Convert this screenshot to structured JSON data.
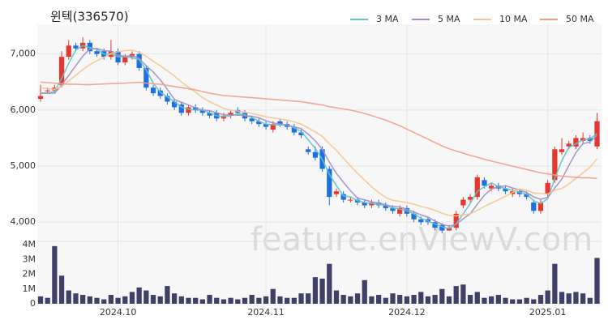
{
  "chart_data": {
    "type": "candlestick",
    "title": "윈텍(336570)",
    "watermark": "feature.enViewV.com",
    "up_color": "#e8352e",
    "down_color": "#1f6fde",
    "grid": true,
    "ylim": [
      3700,
      7530
    ],
    "yticks": [
      {
        "value": 4000,
        "label": "4,000"
      },
      {
        "value": 5000,
        "label": "5,000"
      },
      {
        "value": 6000,
        "label": "6,000"
      },
      {
        "value": 7000,
        "label": "7,000"
      }
    ],
    "categories": [
      null,
      null,
      null,
      null,
      null,
      null,
      null,
      null,
      null,
      null,
      null,
      "2024.10",
      null,
      null,
      null,
      null,
      null,
      null,
      null,
      null,
      null,
      null,
      null,
      null,
      null,
      null,
      null,
      null,
      null,
      null,
      null,
      null,
      "2024.11",
      null,
      null,
      null,
      null,
      null,
      null,
      null,
      null,
      null,
      null,
      null,
      null,
      null,
      null,
      null,
      null,
      null,
      null,
      null,
      "2024.12",
      null,
      null,
      null,
      null,
      null,
      null,
      null,
      null,
      null,
      null,
      null,
      null,
      null,
      null,
      null,
      null,
      null,
      null,
      null,
      "2025.01",
      null,
      null,
      null,
      null,
      null,
      null,
      null
    ],
    "open": [
      6200,
      6350,
      6350,
      6450,
      6950,
      7150,
      7100,
      7200,
      7050,
      7050,
      6950,
      7050,
      6850,
      6950,
      7000,
      6750,
      6400,
      6350,
      6250,
      6150,
      6100,
      5950,
      6050,
      6000,
      5950,
      5950,
      5850,
      5900,
      6000,
      5950,
      5850,
      5800,
      5750,
      5650,
      5800,
      5750,
      5700,
      5600,
      5300,
      5250,
      5300,
      4950,
      4500,
      4500,
      4400,
      4400,
      4350,
      4300,
      4350,
      4300,
      4250,
      4150,
      4250,
      4150,
      4050,
      4050,
      4000,
      3950,
      3850,
      3900,
      4300,
      4400,
      4450,
      4750,
      4600,
      4650,
      4600,
      4500,
      4550,
      4500,
      4350,
      4200,
      4500,
      4750,
      5250,
      5350,
      5350,
      5450,
      5500,
      5350
    ],
    "high": [
      6450,
      6400,
      6450,
      7050,
      7250,
      7200,
      7300,
      7250,
      7100,
      7100,
      7250,
      7100,
      7000,
      7050,
      7050,
      6800,
      6450,
      6400,
      6300,
      6200,
      6150,
      6100,
      6100,
      6050,
      6000,
      6000,
      5950,
      6000,
      6050,
      6000,
      5900,
      5850,
      5800,
      5800,
      5850,
      5800,
      5750,
      5650,
      5350,
      5350,
      5350,
      5000,
      4600,
      4550,
      4450,
      4450,
      4400,
      4400,
      4400,
      4350,
      4300,
      4300,
      4300,
      4200,
      4100,
      4100,
      4050,
      3980,
      3950,
      4200,
      4450,
      4500,
      4850,
      4800,
      4700,
      4700,
      4650,
      4600,
      4600,
      4550,
      4400,
      4400,
      4750,
      5350,
      5500,
      5450,
      5550,
      5600,
      5550,
      5950
    ],
    "low": [
      6150,
      6300,
      6300,
      6400,
      6900,
      7050,
      7050,
      7000,
      6950,
      6900,
      6900,
      6800,
      6800,
      6900,
      6700,
      6350,
      6250,
      6200,
      6100,
      6000,
      5900,
      5900,
      5950,
      5900,
      5850,
      5800,
      5800,
      5850,
      5900,
      5800,
      5750,
      5700,
      5650,
      5600,
      5700,
      5650,
      5550,
      5500,
      5200,
      5100,
      4900,
      4300,
      4450,
      4350,
      4350,
      4300,
      4250,
      4250,
      4250,
      4200,
      4150,
      4100,
      4100,
      4000,
      3950,
      3950,
      3850,
      3800,
      3850,
      3850,
      4250,
      4350,
      4400,
      4600,
      4550,
      4550,
      4500,
      4450,
      4450,
      4400,
      4150,
      4150,
      4450,
      4700,
      5200,
      5300,
      5300,
      5400,
      5400,
      5300
    ],
    "close": [
      6250,
      6350,
      6400,
      6950,
      7150,
      7100,
      7200,
      7050,
      7000,
      6950,
      7050,
      6850,
      6950,
      7000,
      6750,
      6400,
      6300,
      6250,
      6150,
      6050,
      5950,
      6050,
      6000,
      5950,
      5900,
      5850,
      5900,
      5950,
      5950,
      5850,
      5800,
      5750,
      5700,
      5750,
      5750,
      5700,
      5600,
      5550,
      5250,
      5150,
      4950,
      4450,
      4550,
      4400,
      4400,
      4350,
      4300,
      4350,
      4300,
      4250,
      4200,
      4250,
      4150,
      4050,
      4000,
      4000,
      3900,
      3850,
      3900,
      4150,
      4400,
      4450,
      4800,
      4650,
      4650,
      4600,
      4550,
      4550,
      4500,
      4450,
      4200,
      4350,
      4700,
      5300,
      5300,
      5400,
      5500,
      5500,
      5450,
      5800
    ],
    "ma_series": [
      {
        "name": "3 MA",
        "color": "#5cc6c9",
        "values": [
          6300,
          6300,
          6333,
          6567,
          6833,
          7067,
          7150,
          7117,
          7083,
          7000,
          7000,
          6950,
          6950,
          6933,
          6900,
          6717,
          6483,
          6317,
          6233,
          6150,
          6050,
          6017,
          6000,
          6000,
          5950,
          5900,
          5883,
          5900,
          5933,
          5917,
          5867,
          5800,
          5750,
          5733,
          5733,
          5733,
          5683,
          5617,
          5467,
          5317,
          5117,
          4850,
          4650,
          4467,
          4450,
          4383,
          4350,
          4333,
          4317,
          4300,
          4250,
          4233,
          4200,
          4150,
          4067,
          4017,
          3967,
          3917,
          3883,
          3967,
          4150,
          4333,
          4550,
          4633,
          4700,
          4633,
          4600,
          4567,
          4533,
          4500,
          4383,
          4333,
          4417,
          4783,
          5100,
          5333,
          5400,
          5467,
          5483,
          5583
        ]
      },
      {
        "name": "5 MA",
        "color": "#a58fc3",
        "values": [
          6300,
          6300,
          6300,
          6450,
          6620,
          6790,
          6960,
          7090,
          7100,
          7060,
          7050,
          6980,
          6960,
          6970,
          6920,
          6790,
          6680,
          6540,
          6370,
          6190,
          6140,
          6090,
          6040,
          6000,
          5990,
          5950,
          5920,
          5910,
          5910,
          5900,
          5890,
          5860,
          5810,
          5770,
          5750,
          5730,
          5700,
          5670,
          5570,
          5450,
          5300,
          5070,
          4870,
          4710,
          4560,
          4430,
          4400,
          4360,
          4340,
          4310,
          4280,
          4270,
          4230,
          4180,
          4130,
          4090,
          4020,
          3960,
          3930,
          3960,
          4060,
          4150,
          4320,
          4480,
          4590,
          4630,
          4650,
          4610,
          4570,
          4530,
          4450,
          4410,
          4440,
          4610,
          4770,
          5010,
          5240,
          5400,
          5430,
          5550
        ]
      },
      {
        "name": "10 MA",
        "color": "#f2c690",
        "values": [
          6400,
          6380,
          6370,
          6420,
          6520,
          6620,
          6720,
          6810,
          6880,
          6940,
          7010,
          7040,
          7060,
          7070,
          7030,
          6960,
          6870,
          6790,
          6700,
          6610,
          6500,
          6410,
          6320,
          6220,
          6150,
          6090,
          6030,
          6000,
          5980,
          5960,
          5940,
          5910,
          5880,
          5860,
          5840,
          5820,
          5790,
          5750,
          5680,
          5610,
          5530,
          5400,
          5280,
          5140,
          5000,
          4870,
          4750,
          4630,
          4530,
          4440,
          4390,
          4370,
          4350,
          4320,
          4280,
          4250,
          4210,
          4160,
          4120,
          4110,
          4130,
          4150,
          4210,
          4280,
          4340,
          4400,
          4460,
          4530,
          4590,
          4570,
          4520,
          4510,
          4500,
          4570,
          4600,
          4680,
          4780,
          4880,
          4980,
          5130
        ]
      },
      {
        "name": "50 MA",
        "color": "#f29c88",
        "values": [
          6500,
          6490,
          6480,
          6470,
          6460,
          6460,
          6455,
          6455,
          6460,
          6465,
          6470,
          6475,
          6480,
          6490,
          6495,
          6480,
          6470,
          6460,
          6440,
          6420,
          6400,
          6380,
          6360,
          6330,
          6300,
          6280,
          6260,
          6250,
          6240,
          6230,
          6220,
          6210,
          6200,
          6190,
          6180,
          6170,
          6160,
          6150,
          6130,
          6110,
          6090,
          6060,
          6040,
          6020,
          6000,
          5970,
          5940,
          5900,
          5860,
          5820,
          5770,
          5720,
          5660,
          5600,
          5540,
          5480,
          5420,
          5360,
          5310,
          5270,
          5230,
          5190,
          5160,
          5120,
          5090,
          5060,
          5030,
          5000,
          4970,
          4940,
          4910,
          4880,
          4860,
          4840,
          4820,
          4810,
          4800,
          4790,
          4790,
          4780
        ]
      }
    ],
    "volume": {
      "color": "#3f3f68",
      "ylim": [
        0,
        4000000
      ],
      "yticks": [
        0,
        {
          "value": 1000000,
          "label": "1M"
        },
        {
          "value": 2000000,
          "label": "2M"
        },
        {
          "value": 3000000,
          "label": "3M"
        },
        {
          "value": 4000000,
          "label": "4M"
        }
      ],
      "values": [
        500000,
        400000,
        3900000,
        1900000,
        900000,
        700000,
        600000,
        500000,
        400000,
        300000,
        600000,
        400000,
        500000,
        800000,
        1100000,
        900000,
        600000,
        500000,
        1200000,
        700000,
        500000,
        400000,
        400000,
        300000,
        600000,
        400000,
        300000,
        400000,
        300000,
        400000,
        600000,
        400000,
        500000,
        1000000,
        500000,
        400000,
        400000,
        700000,
        700000,
        1800000,
        1700000,
        2700000,
        900000,
        600000,
        500000,
        700000,
        1600000,
        500000,
        600000,
        400000,
        700000,
        600000,
        500000,
        600000,
        800000,
        500000,
        600000,
        1000000,
        500000,
        1200000,
        1300000,
        600000,
        800000,
        400000,
        500000,
        600000,
        400000,
        300000,
        300000,
        400000,
        300000,
        600000,
        900000,
        2700000,
        800000,
        700000,
        800000,
        700000,
        400000,
        3100000
      ]
    }
  }
}
